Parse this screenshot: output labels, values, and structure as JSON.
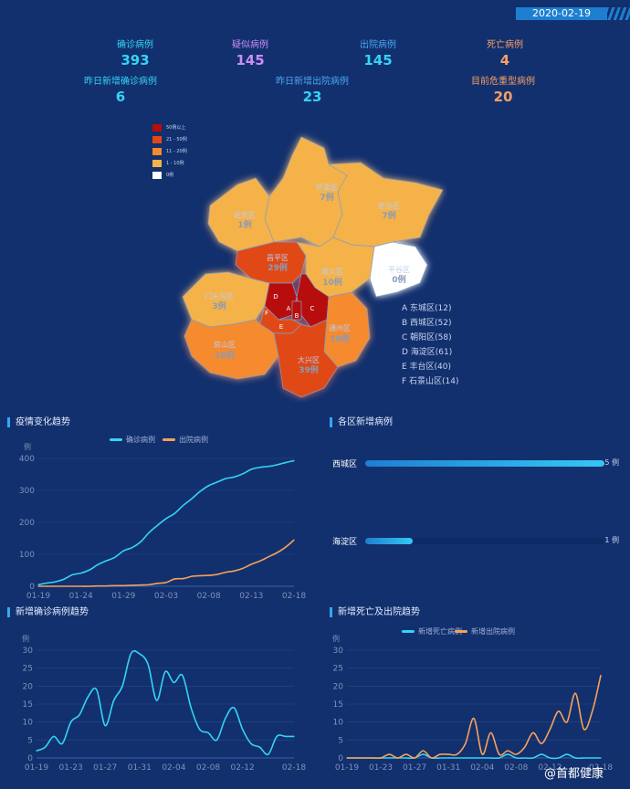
{
  "date": "2020-02-19",
  "stats": {
    "confirmed": {
      "label": "确诊病例",
      "value": "393"
    },
    "suspected": {
      "label": "疑似病例",
      "value": "145"
    },
    "discharged": {
      "label": "出院病例",
      "value": "145"
    },
    "deaths": {
      "label": "死亡病例",
      "value": "4"
    },
    "new_confirmed": {
      "label": "昨日新增确诊病例",
      "value": "6"
    },
    "new_discharged": {
      "label": "昨日新增出院病例",
      "value": "23"
    },
    "severe": {
      "label": "目前危重型病例",
      "value": "20"
    }
  },
  "map": {
    "legend": [
      {
        "label": "50例以上",
        "color": "#b80d0d"
      },
      {
        "label": "21 - 50例",
        "color": "#e04a12"
      },
      {
        "label": "11 - 20例",
        "color": "#f58a2e"
      },
      {
        "label": "1 - 10例",
        "color": "#f5b24a"
      },
      {
        "label": "0例",
        "color": "#ffffff"
      }
    ],
    "districts": [
      {
        "name": "怀柔区",
        "count": "7例"
      },
      {
        "name": "密云区",
        "count": "7例"
      },
      {
        "name": "延庆区",
        "count": "1例"
      },
      {
        "name": "昌平区",
        "count": "29例"
      },
      {
        "name": "顺义区",
        "count": "10例"
      },
      {
        "name": "平谷区",
        "count": "0例"
      },
      {
        "name": "门头沟区",
        "count": "3例"
      },
      {
        "name": "房山区",
        "count": "16例"
      },
      {
        "name": "大兴区",
        "count": "39例"
      },
      {
        "name": "通州区",
        "count": "18例"
      }
    ],
    "letters": [
      "A",
      "B",
      "C",
      "D",
      "E",
      "F"
    ],
    "list": [
      "A 东城区(12)",
      "B 西城区(52)",
      "C 朝阳区(58)",
      "D 海淀区(61)",
      "E 丰台区(40)",
      "F 石景山区(14)"
    ]
  },
  "chart_data": [
    {
      "type": "line",
      "title": "疫情变化趋势",
      "ylabel": "例",
      "legend": [
        "确诊病例",
        "出院病例"
      ],
      "x_ticks": [
        "01-19",
        "01-24",
        "01-29",
        "02-03",
        "02-08",
        "02-13",
        "02-18"
      ],
      "y_ticks": [
        0,
        100,
        200,
        300,
        400
      ],
      "ylim": [
        0,
        400
      ],
      "x": [
        "01-19",
        "01-20",
        "01-21",
        "01-22",
        "01-23",
        "01-24",
        "01-25",
        "01-26",
        "01-27",
        "01-28",
        "01-29",
        "01-30",
        "01-31",
        "02-01",
        "02-02",
        "02-03",
        "02-04",
        "02-05",
        "02-06",
        "02-07",
        "02-08",
        "02-09",
        "02-10",
        "02-11",
        "02-12",
        "02-13",
        "02-14",
        "02-15",
        "02-16",
        "02-17",
        "02-18"
      ],
      "series": [
        {
          "name": "确诊病例",
          "color": "#35d3f5",
          "values": [
            5,
            10,
            14,
            22,
            36,
            41,
            51,
            68,
            80,
            91,
            111,
            121,
            139,
            168,
            191,
            212,
            228,
            253,
            274,
            297,
            315,
            326,
            337,
            342,
            352,
            366,
            372,
            375,
            380,
            387,
            393
          ]
        },
        {
          "name": "出院病例",
          "color": "#f5a15a",
          "values": [
            0,
            0,
            0,
            0,
            0,
            0,
            0,
            1,
            1,
            2,
            2,
            3,
            4,
            5,
            9,
            12,
            23,
            24,
            31,
            33,
            34,
            37,
            44,
            48,
            56,
            69,
            79,
            92,
            105,
            122,
            145
          ]
        }
      ]
    },
    {
      "type": "bar",
      "title": "各区新增病例",
      "max": 5,
      "categories": [
        "西城区",
        "海淀区"
      ],
      "values": [
        5,
        1
      ],
      "labels": [
        "5 例",
        "1 例"
      ]
    },
    {
      "type": "line",
      "title": "新增确诊病例趋势",
      "ylabel": "例",
      "x_ticks": [
        "01-19",
        "01-23",
        "01-27",
        "01-31",
        "02-04",
        "02-08",
        "02-12",
        "02-18"
      ],
      "y_ticks": [
        0,
        5,
        10,
        15,
        20,
        25,
        30
      ],
      "ylim": [
        0,
        30
      ],
      "x": [
        "01-19",
        "01-20",
        "01-21",
        "01-22",
        "01-23",
        "01-24",
        "01-25",
        "01-26",
        "01-27",
        "01-28",
        "01-29",
        "01-30",
        "01-31",
        "02-01",
        "02-02",
        "02-03",
        "02-04",
        "02-05",
        "02-06",
        "02-07",
        "02-08",
        "02-09",
        "02-10",
        "02-11",
        "02-12",
        "02-13",
        "02-14",
        "02-15",
        "02-16",
        "02-17",
        "02-18"
      ],
      "series": [
        {
          "name": "新增确诊病例",
          "color": "#35d3f5",
          "values": [
            2,
            3,
            6,
            4,
            10,
            12,
            17,
            19,
            9,
            16,
            20,
            29,
            29,
            26,
            16,
            24,
            21,
            23,
            14,
            8,
            7,
            5,
            11,
            14,
            8,
            4,
            3,
            1,
            6,
            6,
            6
          ]
        }
      ]
    },
    {
      "type": "line",
      "title": "新增死亡及出院趋势",
      "ylabel": "例",
      "legend": [
        "新增死亡病例",
        "新增出院病例"
      ],
      "x_ticks": [
        "01-19",
        "01-23",
        "01-27",
        "01-31",
        "02-04",
        "02-08",
        "02-12",
        "02-18"
      ],
      "y_ticks": [
        0,
        5,
        10,
        15,
        20,
        25,
        30
      ],
      "ylim": [
        0,
        30
      ],
      "x": [
        "01-19",
        "01-20",
        "01-21",
        "01-22",
        "01-23",
        "01-24",
        "01-25",
        "01-26",
        "01-27",
        "01-28",
        "01-29",
        "01-30",
        "01-31",
        "02-01",
        "02-02",
        "02-03",
        "02-04",
        "02-05",
        "02-06",
        "02-07",
        "02-08",
        "02-09",
        "02-10",
        "02-11",
        "02-12",
        "02-13",
        "02-14",
        "02-15",
        "02-16",
        "02-17",
        "02-18"
      ],
      "series": [
        {
          "name": "新增死亡病例",
          "color": "#35d3f5",
          "values": [
            0,
            0,
            0,
            0,
            0,
            0,
            0,
            0,
            0,
            1,
            0,
            0,
            0,
            0,
            0,
            0,
            0,
            0,
            0,
            1,
            0,
            0,
            0,
            1,
            0,
            0,
            1,
            0,
            0,
            0,
            0
          ]
        },
        {
          "name": "新增出院病例",
          "color": "#f5a15a",
          "values": [
            0,
            0,
            0,
            0,
            0,
            1,
            0,
            1,
            0,
            2,
            0,
            1,
            1,
            1,
            4,
            11,
            1,
            7,
            1,
            2,
            1,
            3,
            7,
            4,
            8,
            13,
            10,
            18,
            8,
            13,
            23
          ]
        }
      ]
    }
  ],
  "watermark": "@首都健康"
}
